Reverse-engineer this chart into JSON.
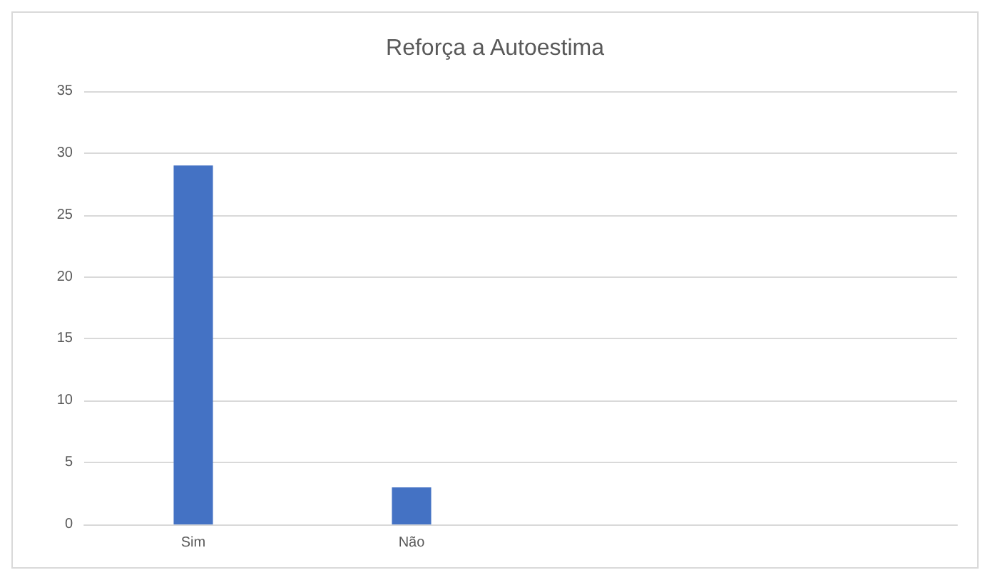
{
  "chart_data": {
    "type": "bar",
    "title": "Reforça a Autoestima",
    "categories": [
      "Sim",
      "Não",
      null,
      null
    ],
    "values": [
      29,
      3,
      null,
      null
    ],
    "color": "#4472c4",
    "ylim": [
      0,
      35
    ],
    "yticks": [
      0,
      5,
      10,
      15,
      20,
      25,
      30,
      35
    ],
    "grid": "y"
  }
}
